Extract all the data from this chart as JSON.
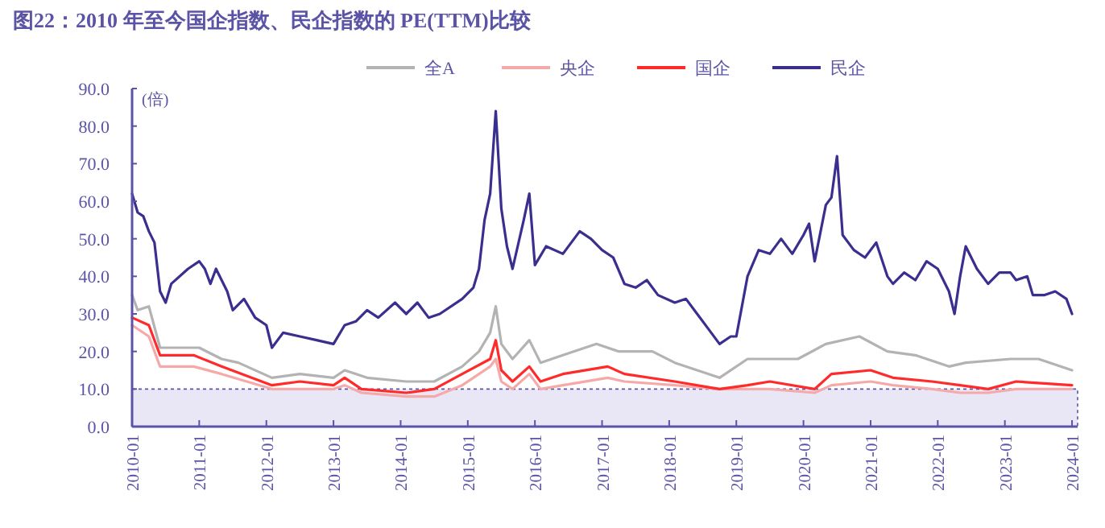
{
  "chart_data": {
    "type": "line",
    "title": "图22：2010 年至今国企指数、民企指数的 PE(TTM)比较",
    "ylabel": "(倍)",
    "xlim": [
      "2010-01",
      "2024-02"
    ],
    "xticks": [
      "2010-01",
      "2011-01",
      "2012-01",
      "2013-01",
      "2014-01",
      "2015-01",
      "2016-01",
      "2017-01",
      "2018-01",
      "2019-01",
      "2020-01",
      "2021-01",
      "2022-01",
      "2023-01",
      "2024-01"
    ],
    "ylim": [
      0,
      90
    ],
    "yticks": [
      {
        "value": 0,
        "label": "0.0"
      },
      {
        "value": 10,
        "label": "10.0"
      },
      {
        "value": 20,
        "label": "20.0"
      },
      {
        "value": 30,
        "label": "30.0"
      },
      {
        "value": 40,
        "label": "40.0"
      },
      {
        "value": 50,
        "label": "50.0"
      },
      {
        "value": 60,
        "label": "60.0"
      },
      {
        "value": 70,
        "label": "70.0"
      },
      {
        "value": 80,
        "label": "80.0"
      },
      {
        "value": 90,
        "label": "90.0"
      }
    ],
    "grid": false,
    "legend": "top",
    "marker": "none",
    "line_style": "solid",
    "bands": [
      {
        "axis": "y",
        "from": 0,
        "to": 10,
        "color": "#e9e7f5"
      }
    ],
    "series": [
      {
        "name": "全A",
        "color": "#b3b3b3",
        "x": [
          "2010-01",
          "2010-02",
          "2010-04",
          "2010-06",
          "2011-01",
          "2011-05",
          "2011-08",
          "2012-02",
          "2012-07",
          "2013-01",
          "2013-03",
          "2013-07",
          "2014-02",
          "2014-07",
          "2014-12",
          "2015-03",
          "2015-05",
          "2015-06",
          "2015-07",
          "2015-09",
          "2015-12",
          "2016-02",
          "2016-06",
          "2016-12",
          "2017-04",
          "2017-10",
          "2018-02",
          "2018-10",
          "2019-03",
          "2019-12",
          "2020-05",
          "2020-11",
          "2021-04",
          "2021-09",
          "2022-03",
          "2022-06",
          "2023-02",
          "2023-07",
          "2024-01"
        ],
        "values": [
          35,
          31,
          32,
          21,
          21,
          18,
          17,
          13,
          14,
          13,
          15,
          13,
          12,
          12,
          16,
          20,
          25,
          32,
          22,
          18,
          23,
          17,
          19,
          22,
          20,
          20,
          17,
          13,
          18,
          18,
          22,
          24,
          20,
          19,
          16,
          17,
          18,
          18,
          15
        ]
      },
      {
        "name": "央企",
        "color": "#f5a9a9",
        "x": [
          "2010-01",
          "2010-04",
          "2010-06",
          "2010-12",
          "2011-05",
          "2012-02",
          "2012-07",
          "2013-01",
          "2013-03",
          "2013-06",
          "2014-02",
          "2014-07",
          "2014-12",
          "2015-05",
          "2015-06",
          "2015-07",
          "2015-09",
          "2015-12",
          "2016-02",
          "2016-06",
          "2017-02",
          "2017-05",
          "2018-02",
          "2018-10",
          "2019-03",
          "2019-07",
          "2020-03",
          "2020-06",
          "2021-01",
          "2021-05",
          "2021-12",
          "2022-05",
          "2022-10",
          "2023-03",
          "2024-01"
        ],
        "values": [
          27,
          24,
          16,
          16,
          14,
          10,
          10,
          10,
          11,
          9,
          8,
          8,
          11,
          16,
          18,
          12,
          10,
          14,
          10,
          11,
          13,
          12,
          11,
          10,
          10,
          10,
          9,
          11,
          12,
          11,
          10,
          9,
          9,
          10,
          10
        ]
      },
      {
        "name": "国企",
        "color": "#ff2a2a",
        "x": [
          "2010-01",
          "2010-04",
          "2010-06",
          "2010-12",
          "2011-05",
          "2012-02",
          "2012-07",
          "2013-01",
          "2013-03",
          "2013-06",
          "2014-02",
          "2014-07",
          "2014-12",
          "2015-05",
          "2015-06",
          "2015-07",
          "2015-09",
          "2015-12",
          "2016-02",
          "2016-06",
          "2017-02",
          "2017-05",
          "2018-02",
          "2018-10",
          "2019-03",
          "2019-07",
          "2020-03",
          "2020-06",
          "2021-01",
          "2021-05",
          "2021-12",
          "2022-05",
          "2022-10",
          "2023-03",
          "2024-01"
        ],
        "values": [
          29,
          27,
          19,
          19,
          16,
          11,
          12,
          11,
          13,
          10,
          9,
          10,
          14,
          18,
          23,
          15,
          12,
          16,
          12,
          14,
          16,
          14,
          12,
          10,
          11,
          12,
          10,
          14,
          15,
          13,
          12,
          11,
          10,
          12,
          11
        ]
      },
      {
        "name": "民企",
        "color": "#3a2f8f",
        "x": [
          "2010-01",
          "2010-02",
          "2010-03",
          "2010-04",
          "2010-05",
          "2010-06",
          "2010-07",
          "2010-08",
          "2010-11",
          "2011-01",
          "2011-02",
          "2011-03",
          "2011-04",
          "2011-06",
          "2011-07",
          "2011-09",
          "2011-11",
          "2012-01",
          "2012-02",
          "2012-04",
          "2012-07",
          "2012-10",
          "2013-01",
          "2013-03",
          "2013-05",
          "2013-07",
          "2013-09",
          "2013-12",
          "2014-02",
          "2014-04",
          "2014-06",
          "2014-08",
          "2014-12",
          "2015-02",
          "2015-03",
          "2015-04",
          "2015-05",
          "2015-06",
          "2015-07",
          "2015-08",
          "2015-09",
          "2015-11",
          "2015-12",
          "2016-01",
          "2016-03",
          "2016-06",
          "2016-09",
          "2016-11",
          "2017-01",
          "2017-03",
          "2017-05",
          "2017-07",
          "2017-09",
          "2017-11",
          "2018-02",
          "2018-04",
          "2018-06",
          "2018-08",
          "2018-10",
          "2018-12",
          "2019-01",
          "2019-03",
          "2019-05",
          "2019-07",
          "2019-09",
          "2019-11",
          "2020-01",
          "2020-02",
          "2020-03",
          "2020-05",
          "2020-06",
          "2020-07",
          "2020-08",
          "2020-10",
          "2020-12",
          "2021-02",
          "2021-04",
          "2021-05",
          "2021-07",
          "2021-09",
          "2021-11",
          "2022-01",
          "2022-03",
          "2022-04",
          "2022-05",
          "2022-06",
          "2022-08",
          "2022-10",
          "2022-12",
          "2023-02",
          "2023-03",
          "2023-05",
          "2023-06",
          "2023-08",
          "2023-10",
          "2023-12",
          "2024-01"
        ],
        "values": [
          62,
          57,
          56,
          52,
          49,
          36,
          33,
          38,
          42,
          44,
          42,
          38,
          42,
          36,
          31,
          34,
          29,
          27,
          21,
          25,
          24,
          23,
          22,
          27,
          28,
          31,
          29,
          33,
          30,
          33,
          29,
          30,
          34,
          37,
          42,
          55,
          62,
          84,
          58,
          48,
          42,
          55,
          62,
          43,
          48,
          46,
          52,
          50,
          47,
          45,
          38,
          37,
          39,
          35,
          33,
          34,
          30,
          26,
          22,
          24,
          24,
          40,
          47,
          46,
          50,
          46,
          51,
          54,
          44,
          59,
          61,
          72,
          51,
          47,
          45,
          49,
          40,
          38,
          41,
          39,
          44,
          42,
          36,
          30,
          40,
          48,
          42,
          38,
          41,
          41,
          39,
          40,
          35,
          35,
          36,
          34,
          30
        ]
      }
    ]
  }
}
